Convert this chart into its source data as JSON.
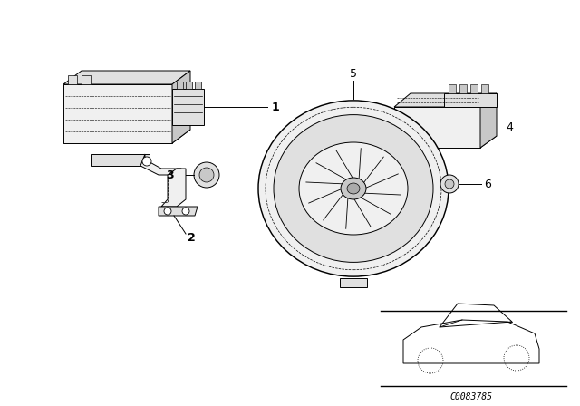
{
  "bg_color": "#ffffff",
  "fig_width": 6.4,
  "fig_height": 4.48,
  "dpi": 100,
  "diagram_code_text": "C0083785",
  "lw": 0.7,
  "ec": "#000000",
  "fc_light": "#f0f0f0",
  "fc_mid": "#e0e0e0",
  "fc_dark": "#c8c8c8"
}
